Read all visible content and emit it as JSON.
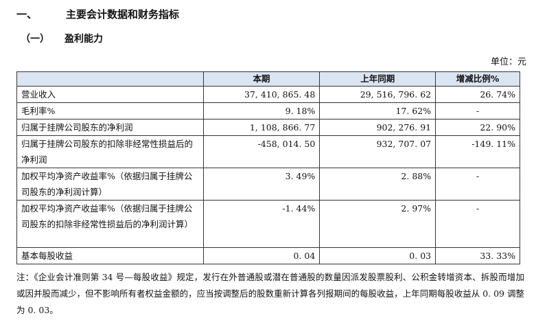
{
  "heading1": {
    "num": "一、",
    "title": "主要会计数据和财务指标"
  },
  "heading2": {
    "num": "（一）",
    "title": "盈利能力"
  },
  "unit": "单位：元",
  "table": {
    "headers": [
      "",
      "本期",
      "上年同期",
      "增减比例%"
    ],
    "rows": [
      {
        "label": "营业收入",
        "current": "37, 410, 865. 48",
        "prior": "29, 516, 796. 62",
        "change": "26. 74%"
      },
      {
        "label": "毛利率%",
        "current": "9. 18%",
        "prior": "17. 62%",
        "change": "-"
      },
      {
        "label": "归属于挂牌公司股东的净利润",
        "current": "1, 108, 866. 77",
        "prior": "902, 276. 91",
        "change": "22. 90%"
      },
      {
        "label": "归属于挂牌公司股东的扣除非经常性损益后的净利润",
        "current": "-458, 014. 50",
        "prior": "932, 707. 07",
        "change": "-149. 11%"
      },
      {
        "label": "加权平均净资产收益率%（依据归属于挂牌公司股东的净利润计算）",
        "current": "3. 49%",
        "prior": "2. 88%",
        "change": "-"
      },
      {
        "label": "加权平均净资产收益率%（依据归属于挂牌公司股东的扣除非经常性损益后的净利润计算）",
        "current": "-1. 44%",
        "prior": "2. 97%",
        "change": "-"
      },
      {
        "label": "基本每股收益",
        "current": "0. 04",
        "prior": "0. 03",
        "change": "33. 33%"
      }
    ]
  },
  "note": "注：《企业会计准则第 34 号—每股收益》规定，发行在外普通股或潜在普通股的数量因派发股票股利、公积金转增资本、拆股而增加或因并股而减少，但不影响所有者权益金额的，应当按调整后的股数重新计算各列报期间的每股收益，上年同期每股收益从 0. 09 调整为 0. 03。"
}
